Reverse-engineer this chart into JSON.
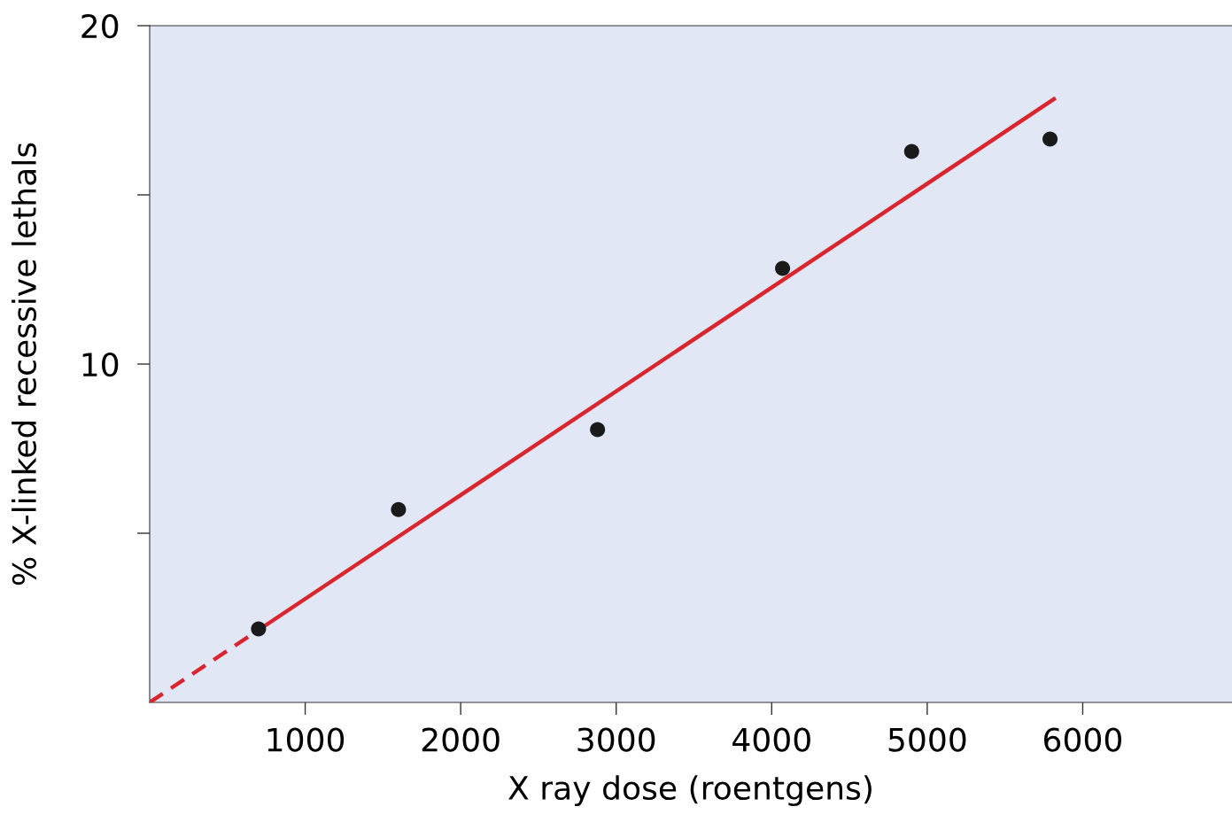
{
  "chart_data": {
    "type": "scatter",
    "xlabel": "X ray dose (roentgens)",
    "ylabel": "% X-linked recessive lethals",
    "xlim": [
      0,
      6960
    ],
    "ylim": [
      0,
      20
    ],
    "xticks": [
      1000,
      2000,
      3000,
      4000,
      5000,
      6000
    ],
    "yticks": [
      {
        "value": 5,
        "label": null
      },
      10,
      {
        "value": 15,
        "label": null
      },
      20
    ],
    "grid": false,
    "legend": false,
    "series": [
      {
        "color": "#1a1a1a",
        "marker": "circle",
        "x": [
          700,
          1600,
          2880,
          4070,
          4900,
          5790
        ],
        "values": [
          2.17,
          5.7,
          8.06,
          12.83,
          16.28,
          16.65
        ]
      },
      {
        "type": "line",
        "color": "#d9262e",
        "marker": "none",
        "line_style": "dashed",
        "x": [
          0,
          700
        ],
        "values": [
          0,
          2.14
        ]
      },
      {
        "type": "line",
        "color": "#d9262e",
        "marker": "none",
        "line_style": "solid",
        "x": [
          700,
          5815
        ],
        "values": [
          2.14,
          17.83
        ]
      }
    ]
  }
}
